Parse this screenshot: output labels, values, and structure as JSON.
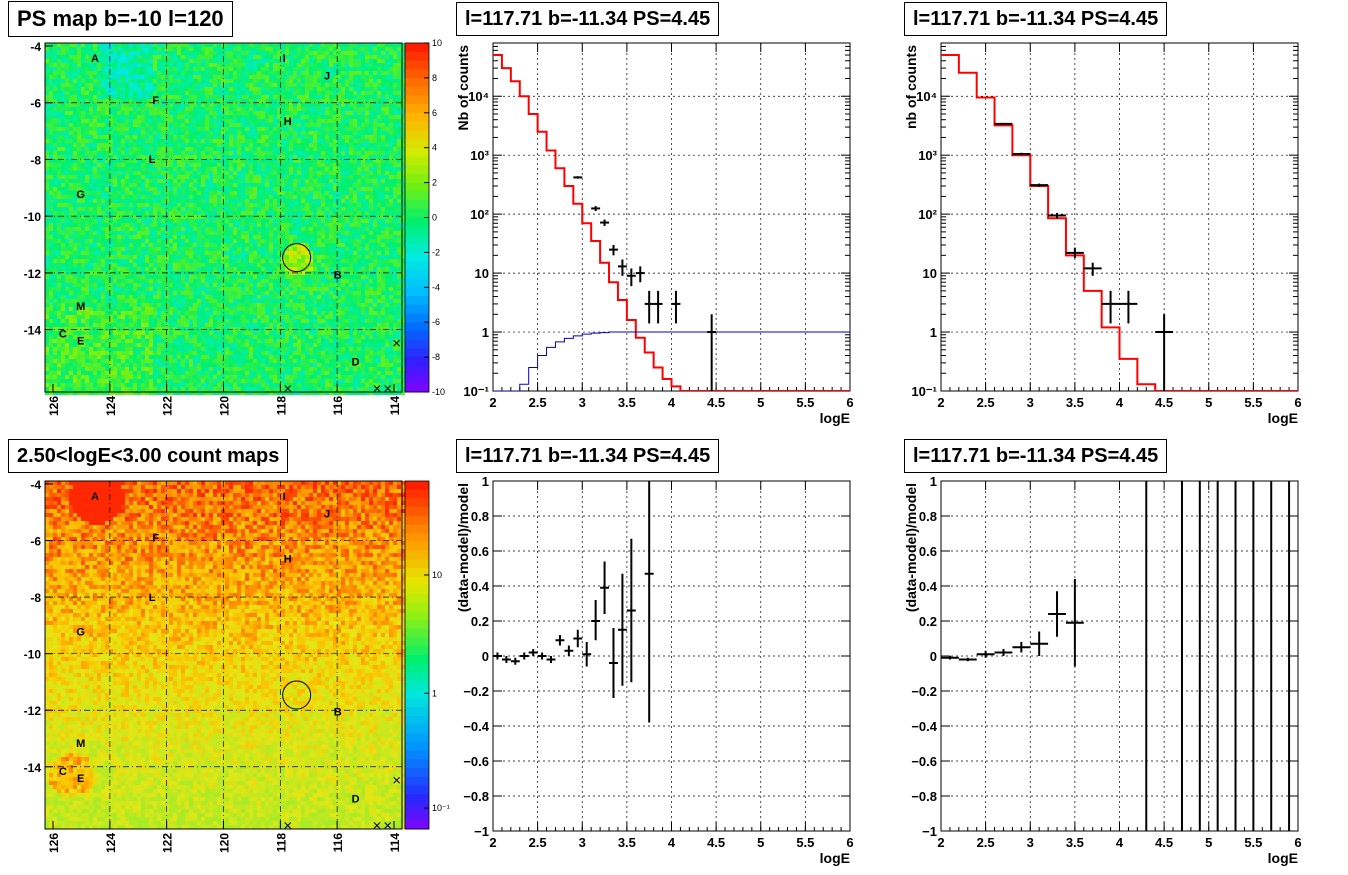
{
  "maps": {
    "top": {
      "title": "PS map b=-10 l=120",
      "xticks": [
        "126",
        "124",
        "122",
        "120",
        "118",
        "116",
        "114"
      ],
      "yticks": [
        "-4",
        "-6",
        "-8",
        "-10",
        "-12",
        "-14"
      ],
      "colorbar_labels": [
        "10",
        "8",
        "6",
        "4",
        "2",
        "0",
        "-2",
        "-4",
        "-6",
        "-8",
        "-10"
      ],
      "colormap": "ps-significance"
    },
    "bottom": {
      "title": "2.50<logE<3.00 count maps",
      "xticks": [
        "126",
        "124",
        "122",
        "120",
        "118",
        "116",
        "114"
      ],
      "yticks": [
        "-4",
        "-6",
        "-8",
        "-10",
        "-12",
        "-14"
      ],
      "colorbar_labels": [
        "10",
        "1",
        "10⁻¹"
      ],
      "colormap": "counts-log"
    },
    "sources": [
      "A",
      "F",
      "L",
      "G",
      "M",
      "C",
      "E",
      "I",
      "H",
      "J",
      "B",
      "D"
    ]
  },
  "chart_data": [
    {
      "type": "line",
      "title": "l=117.71 b=-11.34 PS=4.45",
      "xlabel": "logE",
      "ylabel": "Nb of counts",
      "log_y": true,
      "xlim": [
        2,
        6
      ],
      "ylim": [
        0.1,
        80000
      ],
      "xticks": [
        "2",
        "2.5",
        "3",
        "3.5",
        "4",
        "4.5",
        "5",
        "5.5",
        "6"
      ],
      "yticks": [
        {
          "v": 0.1,
          "t": "10⁻¹"
        },
        {
          "v": 1,
          "t": "1"
        },
        {
          "v": 10,
          "t": "10"
        },
        {
          "v": 100,
          "t": "10²"
        },
        {
          "v": 1000,
          "t": "10³"
        },
        {
          "v": 10000,
          "t": "10⁴"
        }
      ],
      "grid": true,
      "series": [
        {
          "color": "#ff0000",
          "kind": "step",
          "x": [
            2.0,
            2.1,
            2.2,
            2.3,
            2.4,
            2.5,
            2.6,
            2.7,
            2.8,
            2.9,
            3.0,
            3.1,
            3.2,
            3.3,
            3.4,
            3.5,
            3.6,
            3.7,
            3.8,
            3.9,
            4.0,
            4.1,
            4.2,
            4.3,
            4.4,
            4.5,
            4.6,
            4.7,
            4.8,
            4.9,
            5.0,
            5.1,
            5.2,
            5.3,
            5.4,
            5.5,
            5.6,
            5.7,
            5.8,
            5.9
          ],
          "y": [
            50000,
            30000,
            18000,
            10000,
            5000,
            2500,
            1200,
            600,
            300,
            150,
            70,
            35,
            15,
            7,
            3.5,
            1.6,
            0.8,
            0.45,
            0.25,
            0.16,
            0.12,
            0.1,
            0.1,
            0.1,
            0.1,
            0.1,
            0.1,
            0.1,
            0.1,
            0.1,
            0.1,
            0.1,
            0.1,
            0.1,
            0.1,
            0.1,
            0.1,
            0.1,
            0.1,
            0.1
          ]
        },
        {
          "color": "#0000cc",
          "kind": "step",
          "x": [
            2.0,
            2.1,
            2.2,
            2.3,
            2.4,
            2.5,
            2.6,
            2.7,
            2.8,
            2.9,
            3.0,
            3.1,
            3.2,
            3.3,
            3.4,
            3.5,
            3.6,
            3.7,
            3.8,
            3.9,
            4.0,
            4.1,
            4.2,
            4.3,
            4.4,
            4.5,
            4.6,
            4.7,
            4.8,
            4.9,
            5.0,
            5.1,
            5.2,
            5.3,
            5.4,
            5.5,
            5.6,
            5.7,
            5.8,
            5.9
          ],
          "y": [
            0.1,
            0.1,
            0.1,
            0.13,
            0.25,
            0.4,
            0.55,
            0.68,
            0.78,
            0.86,
            0.92,
            0.96,
            0.98,
            1,
            1,
            1,
            1,
            1,
            1,
            1,
            1,
            1,
            1,
            1,
            1,
            1,
            1,
            1,
            1,
            1,
            1,
            1,
            1,
            1,
            1,
            1,
            1,
            1,
            1,
            1
          ]
        },
        {
          "color": "#000000",
          "kind": "points",
          "points": [
            {
              "x": 2.95,
              "y": 420,
              "xerr": 0.05,
              "ylo": 400,
              "yhi": 440
            },
            {
              "x": 3.15,
              "y": 125,
              "xerr": 0.05,
              "ylo": 113,
              "yhi": 137
            },
            {
              "x": 3.25,
              "y": 72,
              "xerr": 0.05,
              "ylo": 63,
              "yhi": 81
            },
            {
              "x": 3.35,
              "y": 25,
              "xerr": 0.05,
              "ylo": 20,
              "yhi": 30
            },
            {
              "x": 3.45,
              "y": 13,
              "xerr": 0.05,
              "ylo": 9,
              "yhi": 17
            },
            {
              "x": 3.55,
              "y": 9,
              "xerr": 0.05,
              "ylo": 6,
              "yhi": 12
            },
            {
              "x": 3.65,
              "y": 10,
              "xerr": 0.05,
              "ylo": 7,
              "yhi": 13
            },
            {
              "x": 3.75,
              "y": 3,
              "xerr": 0.05,
              "ylo": 1.4,
              "yhi": 5
            },
            {
              "x": 3.85,
              "y": 3,
              "xerr": 0.05,
              "ylo": 1.4,
              "yhi": 5
            },
            {
              "x": 4.05,
              "y": 3,
              "xerr": 0.05,
              "ylo": 1.4,
              "yhi": 5
            },
            {
              "x": 4.45,
              "y": 1,
              "xerr": 0.05,
              "ylo": 0.1,
              "yhi": 2
            }
          ]
        }
      ]
    },
    {
      "type": "line",
      "title": "l=117.71 b=-11.34 PS=4.45",
      "xlabel": "logE",
      "ylabel": "nb of counts",
      "log_y": true,
      "xlim": [
        2,
        6
      ],
      "ylim": [
        0.1,
        80000
      ],
      "xticks": [
        "2",
        "2.5",
        "3",
        "3.5",
        "4",
        "4.5",
        "5",
        "5.5",
        "6"
      ],
      "yticks": [
        {
          "v": 0.1,
          "t": "10⁻¹"
        },
        {
          "v": 1,
          "t": "1"
        },
        {
          "v": 10,
          "t": "10"
        },
        {
          "v": 100,
          "t": "10²"
        },
        {
          "v": 1000,
          "t": "10³"
        },
        {
          "v": 10000,
          "t": "10⁴"
        }
      ],
      "grid": true,
      "series": [
        {
          "color": "#ff0000",
          "kind": "step",
          "x": [
            2.0,
            2.2,
            2.4,
            2.6,
            2.8,
            3.0,
            3.2,
            3.4,
            3.6,
            3.8,
            4.0,
            4.2,
            4.4,
            4.6,
            4.8,
            5.0,
            5.2,
            5.4,
            5.6,
            5.8
          ],
          "y": [
            50000,
            25000,
            9500,
            3200,
            1000,
            300,
            85,
            20,
            5,
            1.2,
            0.35,
            0.13,
            0.1,
            0.1,
            0.1,
            0.1,
            0.1,
            0.1,
            0.1,
            0.1
          ]
        },
        {
          "color": "#000000",
          "kind": "points",
          "points": [
            {
              "x": 2.7,
              "y": 3400,
              "xerr": 0.1,
              "ylo": 3300,
              "yhi": 3500
            },
            {
              "x": 2.9,
              "y": 1050,
              "xerr": 0.1,
              "ylo": 1000,
              "yhi": 1100
            },
            {
              "x": 3.1,
              "y": 310,
              "xerr": 0.1,
              "ylo": 290,
              "yhi": 330
            },
            {
              "x": 3.3,
              "y": 95,
              "xerr": 0.1,
              "ylo": 85,
              "yhi": 105
            },
            {
              "x": 3.5,
              "y": 22,
              "xerr": 0.1,
              "ylo": 18,
              "yhi": 27
            },
            {
              "x": 3.7,
              "y": 12,
              "xerr": 0.1,
              "ylo": 9,
              "yhi": 15
            },
            {
              "x": 3.9,
              "y": 3,
              "xerr": 0.1,
              "ylo": 1.4,
              "yhi": 5
            },
            {
              "x": 4.1,
              "y": 3,
              "xerr": 0.1,
              "ylo": 1.4,
              "yhi": 5
            },
            {
              "x": 4.5,
              "y": 1,
              "xerr": 0.1,
              "ylo": 0.1,
              "yhi": 2
            }
          ]
        }
      ]
    },
    {
      "type": "scatter",
      "title": "l=117.71 b=-11.34 PS=4.45",
      "xlabel": "logE",
      "ylabel": "(data-model)/model",
      "log_y": false,
      "xlim": [
        2,
        6
      ],
      "ylim": [
        -1,
        1
      ],
      "xticks": [
        "2",
        "2.5",
        "3",
        "3.5",
        "4",
        "4.5",
        "5",
        "5.5",
        "6"
      ],
      "yticks": [
        {
          "v": -1,
          "t": "−1"
        },
        {
          "v": -0.8,
          "t": "−0.8"
        },
        {
          "v": -0.6,
          "t": "−0.6"
        },
        {
          "v": -0.4,
          "t": "−0.4"
        },
        {
          "v": -0.2,
          "t": "−0.2"
        },
        {
          "v": 0,
          "t": "0"
        },
        {
          "v": 0.2,
          "t": "0.2"
        },
        {
          "v": 0.4,
          "t": "0.4"
        },
        {
          "v": 0.6,
          "t": "0.6"
        },
        {
          "v": 0.8,
          "t": "0.8"
        },
        {
          "v": 1,
          "t": "1"
        }
      ],
      "grid": true,
      "series": [
        {
          "color": "#000000",
          "kind": "points",
          "points": [
            {
              "x": 2.05,
              "y": 0.0,
              "xerr": 0.05,
              "ylo": -0.02,
              "yhi": 0.02
            },
            {
              "x": 2.15,
              "y": -0.02,
              "xerr": 0.05,
              "ylo": -0.04,
              "yhi": 0.0
            },
            {
              "x": 2.25,
              "y": -0.03,
              "xerr": 0.05,
              "ylo": -0.05,
              "yhi": -0.01
            },
            {
              "x": 2.35,
              "y": 0.0,
              "xerr": 0.05,
              "ylo": -0.02,
              "yhi": 0.02
            },
            {
              "x": 2.45,
              "y": 0.02,
              "xerr": 0.05,
              "ylo": 0.0,
              "yhi": 0.04
            },
            {
              "x": 2.55,
              "y": 0.0,
              "xerr": 0.05,
              "ylo": -0.02,
              "yhi": 0.02
            },
            {
              "x": 2.65,
              "y": -0.02,
              "xerr": 0.05,
              "ylo": -0.04,
              "yhi": 0.0
            },
            {
              "x": 2.75,
              "y": 0.09,
              "xerr": 0.05,
              "ylo": 0.06,
              "yhi": 0.12
            },
            {
              "x": 2.85,
              "y": 0.03,
              "xerr": 0.05,
              "ylo": 0.0,
              "yhi": 0.06
            },
            {
              "x": 2.95,
              "y": 0.1,
              "xerr": 0.05,
              "ylo": 0.05,
              "yhi": 0.15
            },
            {
              "x": 3.05,
              "y": 0.01,
              "xerr": 0.05,
              "ylo": -0.06,
              "yhi": 0.08
            },
            {
              "x": 3.15,
              "y": 0.2,
              "xerr": 0.05,
              "ylo": 0.09,
              "yhi": 0.32
            },
            {
              "x": 3.25,
              "y": 0.39,
              "xerr": 0.05,
              "ylo": 0.24,
              "yhi": 0.54
            },
            {
              "x": 3.35,
              "y": -0.04,
              "xerr": 0.05,
              "ylo": -0.24,
              "yhi": 0.16
            },
            {
              "x": 3.45,
              "y": 0.15,
              "xerr": 0.05,
              "ylo": -0.17,
              "yhi": 0.47
            },
            {
              "x": 3.55,
              "y": 0.26,
              "xerr": 0.05,
              "ylo": -0.15,
              "yhi": 0.67
            },
            {
              "x": 3.75,
              "y": 0.47,
              "xerr": 0.05,
              "ylo": -0.38,
              "yhi": 1.0
            }
          ]
        }
      ]
    },
    {
      "type": "scatter",
      "title": "l=117.71 b=-11.34 PS=4.45",
      "xlabel": "logE",
      "ylabel": "(data-model)/model",
      "log_y": false,
      "xlim": [
        2,
        6
      ],
      "ylim": [
        -1,
        1
      ],
      "xticks": [
        "2",
        "2.5",
        "3",
        "3.5",
        "4",
        "4.5",
        "5",
        "5.5",
        "6"
      ],
      "yticks": [
        {
          "v": -1,
          "t": "−1"
        },
        {
          "v": -0.8,
          "t": "−0.8"
        },
        {
          "v": -0.6,
          "t": "−0.6"
        },
        {
          "v": -0.4,
          "t": "−0.4"
        },
        {
          "v": -0.2,
          "t": "−0.2"
        },
        {
          "v": 0,
          "t": "0"
        },
        {
          "v": 0.2,
          "t": "0.2"
        },
        {
          "v": 0.4,
          "t": "0.4"
        },
        {
          "v": 0.6,
          "t": "0.6"
        },
        {
          "v": 0.8,
          "t": "0.8"
        },
        {
          "v": 1,
          "t": "1"
        }
      ],
      "grid": true,
      "series": [
        {
          "color": "#000000",
          "kind": "points",
          "points": [
            {
              "x": 2.1,
              "y": -0.01,
              "xerr": 0.1,
              "ylo": -0.02,
              "yhi": 0.0
            },
            {
              "x": 2.3,
              "y": -0.02,
              "xerr": 0.1,
              "ylo": -0.03,
              "yhi": -0.01
            },
            {
              "x": 2.5,
              "y": 0.01,
              "xerr": 0.1,
              "ylo": -0.01,
              "yhi": 0.03
            },
            {
              "x": 2.7,
              "y": 0.02,
              "xerr": 0.1,
              "ylo": 0.0,
              "yhi": 0.04
            },
            {
              "x": 2.9,
              "y": 0.05,
              "xerr": 0.1,
              "ylo": 0.02,
              "yhi": 0.08
            },
            {
              "x": 3.1,
              "y": 0.07,
              "xerr": 0.1,
              "ylo": 0.0,
              "yhi": 0.14
            },
            {
              "x": 3.3,
              "y": 0.24,
              "xerr": 0.1,
              "ylo": 0.11,
              "yhi": 0.37
            },
            {
              "x": 3.5,
              "y": 0.19,
              "xerr": 0.1,
              "ylo": -0.06,
              "yhi": 0.44
            },
            {
              "x": 4.3,
              "y": 1.0,
              "xerr": 0,
              "ylo": -1.0,
              "yhi": 1.0
            },
            {
              "x": 4.7,
              "y": 1.0,
              "xerr": 0,
              "ylo": -1.0,
              "yhi": 1.0
            },
            {
              "x": 4.9,
              "y": 1.0,
              "xerr": 0,
              "ylo": -1.0,
              "yhi": 1.0
            },
            {
              "x": 5.1,
              "y": 1.0,
              "xerr": 0,
              "ylo": -1.0,
              "yhi": 1.0
            },
            {
              "x": 5.3,
              "y": 1.0,
              "xerr": 0,
              "ylo": -1.0,
              "yhi": 1.0
            },
            {
              "x": 5.5,
              "y": 1.0,
              "xerr": 0,
              "ylo": -1.0,
              "yhi": 1.0
            },
            {
              "x": 5.7,
              "y": 1.0,
              "xerr": 0,
              "ylo": -1.0,
              "yhi": 1.0
            },
            {
              "x": 5.9,
              "y": 1.0,
              "xerr": 0,
              "ylo": -1.0,
              "yhi": 1.0
            }
          ]
        }
      ]
    }
  ]
}
